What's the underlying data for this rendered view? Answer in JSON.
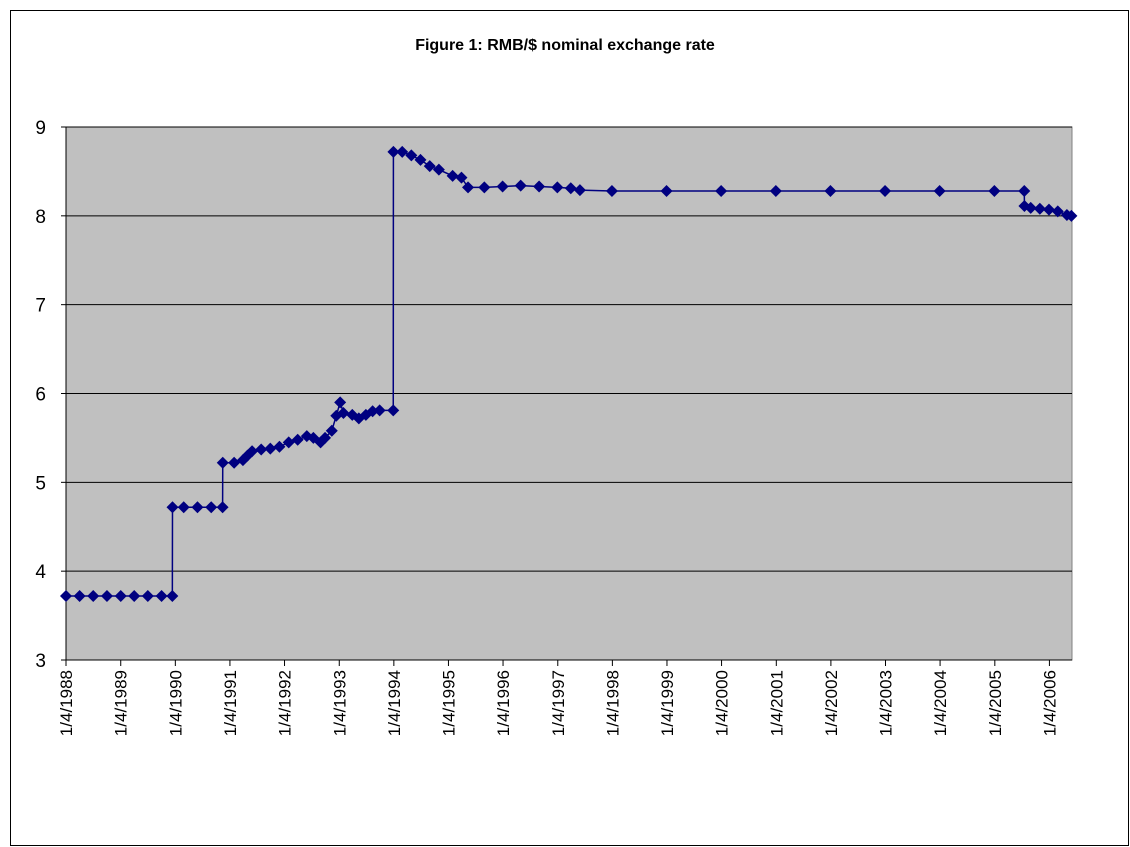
{
  "chart_data": {
    "type": "line",
    "title": "Figure 1: RMB/$ nominal exchange rate",
    "x": [
      "1/4/1988",
      "4/4/1988",
      "7/4/1988",
      "10/4/1988",
      "1/4/1989",
      "4/4/1989",
      "7/4/1989",
      "10/4/1989",
      "12/15/1989",
      "12/16/1989",
      "3/1/1990",
      "6/1/1990",
      "9/1/1990",
      "11/16/1990",
      "11/17/1990",
      "2/1/1991",
      "4/1/1991",
      "5/1/1991",
      "6/1/1991",
      "8/1/1991",
      "10/1/1991",
      "12/1/1991",
      "2/1/1992",
      "4/1/1992",
      "6/1/1992",
      "7/15/1992",
      "9/1/1992",
      "10/1/1992",
      "11/15/1992",
      "12/15/1992",
      "1/10/1993",
      "2/1/1993",
      "4/1/1993",
      "5/15/1993",
      "7/1/1993",
      "8/15/1993",
      "10/1/1993",
      "12/31/1993",
      "1/1/1994",
      "3/1/1994",
      "5/1/1994",
      "7/1/1994",
      "9/1/1994",
      "11/1/1994",
      "2/1/1995",
      "4/1/1995",
      "5/15/1995",
      "9/1/1995",
      "1/1/1996",
      "5/1/1996",
      "9/1/1996",
      "1/1/1997",
      "4/1/1997",
      "6/1/1997",
      "1/1/1998",
      "1/1/1999",
      "1/1/2000",
      "1/1/2001",
      "1/1/2002",
      "1/1/2003",
      "1/1/2004",
      "1/1/2005",
      "7/20/2005",
      "7/21/2005",
      "9/1/2005",
      "11/1/2005",
      "1/1/2006",
      "3/1/2006",
      "5/1/2006",
      "5/31/2006"
    ],
    "series": [
      {
        "color": "#000080",
        "values": [
          3.72,
          3.72,
          3.72,
          3.72,
          3.72,
          3.72,
          3.72,
          3.72,
          3.72,
          4.72,
          4.72,
          4.72,
          4.72,
          4.72,
          5.22,
          5.22,
          5.25,
          5.3,
          5.35,
          5.37,
          5.38,
          5.4,
          5.45,
          5.48,
          5.52,
          5.5,
          5.45,
          5.5,
          5.58,
          5.75,
          5.9,
          5.78,
          5.76,
          5.72,
          5.76,
          5.8,
          5.81,
          5.81,
          8.72,
          8.72,
          8.68,
          8.63,
          8.56,
          8.52,
          8.45,
          8.43,
          8.32,
          8.32,
          8.33,
          8.34,
          8.33,
          8.32,
          8.31,
          8.29,
          8.28,
          8.28,
          8.28,
          8.28,
          8.28,
          8.28,
          8.28,
          8.28,
          8.28,
          8.11,
          8.09,
          8.08,
          8.07,
          8.05,
          8.01,
          8.0
        ]
      }
    ],
    "xlim": [
      "1/4/1988",
      "6/4/2006"
    ],
    "xticks": [
      "1/4/1988",
      "1/4/1989",
      "1/4/1990",
      "1/4/1991",
      "1/4/1992",
      "1/4/1993",
      "1/4/1994",
      "1/4/1995",
      "1/4/1996",
      "1/4/1997",
      "1/4/1998",
      "1/4/1999",
      "1/4/2000",
      "1/4/2001",
      "1/4/2002",
      "1/4/2003",
      "1/4/2004",
      "1/4/2005",
      "1/4/2006"
    ],
    "ylim": [
      3,
      9
    ],
    "yticks": [
      3,
      4,
      5,
      6,
      7,
      8,
      9
    ],
    "grid": true,
    "plot_background": "#c0c0c0"
  }
}
